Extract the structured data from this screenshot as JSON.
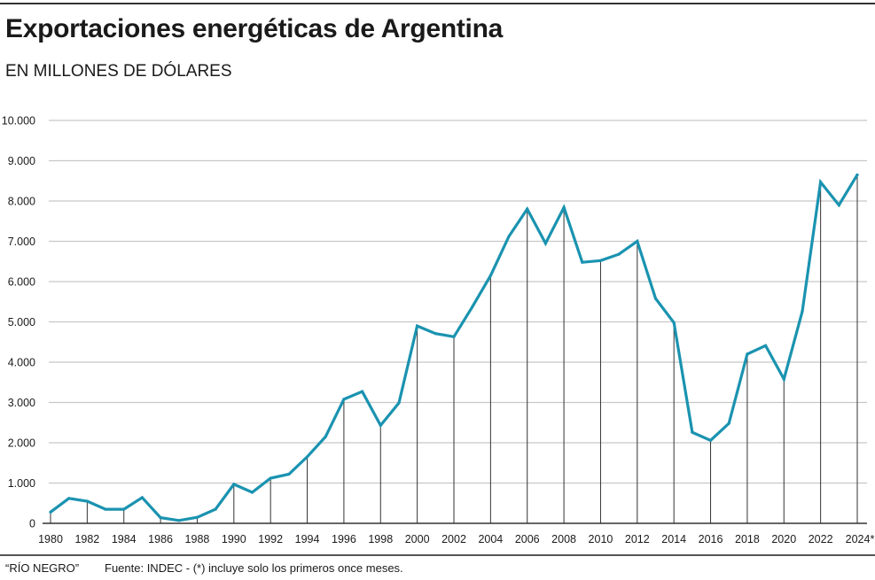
{
  "header": {
    "title": "Exportaciones energéticas de Argentina",
    "subtitle": "EN MILLONES DE DÓLARES"
  },
  "footer": {
    "credit": "“RÍO NEGRO”",
    "source": "Fuente: INDEC - (*) incluye solo los primeros once meses."
  },
  "colors": {
    "line": "#1a93b0",
    "grid": "#c8c8c8",
    "droplines": "#333333",
    "axis": "#333333"
  },
  "chart_data": {
    "type": "line",
    "title": "Exportaciones energéticas de Argentina",
    "subtitle": "EN MILLONES DE DÓLARES",
    "xlabel": "",
    "ylabel": "Millones de dólares",
    "ylim": [
      0,
      10000
    ],
    "yticks": [
      0,
      1000,
      2000,
      3000,
      4000,
      5000,
      6000,
      7000,
      8000,
      9000,
      10000
    ],
    "ytick_labels": [
      "0",
      "1.000",
      "2.000",
      "3.000",
      "4.000",
      "5.000",
      "6.000",
      "7.000",
      "8.000",
      "9.000",
      "10.000"
    ],
    "xlim": [
      1980,
      2024
    ],
    "xticks": [
      1980,
      1982,
      1984,
      1986,
      1988,
      1990,
      1992,
      1994,
      1996,
      1998,
      2000,
      2002,
      2004,
      2006,
      2008,
      2010,
      2012,
      2014,
      2016,
      2018,
      2020,
      2022,
      2024
    ],
    "xtick_labels": [
      "1980",
      "1982",
      "1984",
      "1986",
      "1988",
      "1990",
      "1992",
      "1994",
      "1996",
      "1998",
      "2000",
      "2002",
      "2004",
      "2006",
      "2008",
      "2010",
      "2012",
      "2014",
      "2016",
      "2018",
      "2020",
      "2022",
      "2024*"
    ],
    "grid": true,
    "legend": "none",
    "droplines_at": "even years",
    "x": [
      1980,
      1981,
      1982,
      1983,
      1984,
      1985,
      1986,
      1987,
      1988,
      1989,
      1990,
      1991,
      1992,
      1993,
      1994,
      1995,
      1996,
      1997,
      1998,
      1999,
      2000,
      2001,
      2002,
      2003,
      2004,
      2005,
      2006,
      2007,
      2008,
      2009,
      2010,
      2011,
      2012,
      2013,
      2014,
      2015,
      2016,
      2017,
      2018,
      2019,
      2020,
      2021,
      2022,
      2023,
      2024
    ],
    "series": [
      {
        "name": "Exportaciones energéticas",
        "values": [
          280,
          620,
          550,
          350,
          350,
          640,
          140,
          70,
          150,
          350,
          970,
          770,
          1120,
          1220,
          1650,
          2150,
          3080,
          3270,
          2430,
          2990,
          4900,
          4710,
          4630,
          5370,
          6150,
          7120,
          7800,
          6950,
          7840,
          6480,
          6520,
          6680,
          7000,
          5580,
          4980,
          2260,
          2060,
          2480,
          4200,
          4410,
          3580,
          5260,
          8470,
          7900,
          8650
        ]
      }
    ]
  }
}
